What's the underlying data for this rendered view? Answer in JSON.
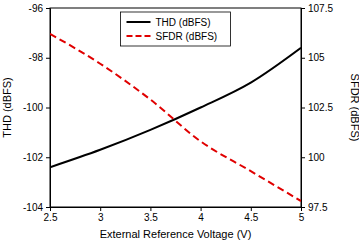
{
  "chart_data": {
    "type": "line",
    "x_label": "External Reference Voltage (V)",
    "y_label": "THD (dBFS)",
    "y2_label": "SFDR (dBFS)",
    "x": [
      2.5,
      3,
      3.5,
      4,
      4.5,
      5
    ],
    "xlim": [
      2.5,
      5
    ],
    "xticks": [
      2.5,
      3,
      3.5,
      4,
      4.5,
      5
    ],
    "ylim": [
      -104,
      -96
    ],
    "yticks": [
      -104,
      -102,
      -100,
      -98,
      -96
    ],
    "y2lim": [
      97.5,
      107.5
    ],
    "y2ticks": [
      97.5,
      100,
      102.5,
      105,
      107.5
    ],
    "legend": "top",
    "series": [
      {
        "name": "THD (dBFS)",
        "color": "#000000",
        "line_style": "solid",
        "values": [
          -102.4,
          -101.7,
          -100.9,
          -100.0,
          -99.0,
          -97.6
        ]
      },
      {
        "name": "SFDR (dBFS)",
        "color": "#e00000",
        "line_style": "dashed",
        "axis": "y2",
        "values": [
          106.2,
          104.7,
          102.9,
          100.8,
          99.3,
          97.8
        ]
      }
    ]
  }
}
